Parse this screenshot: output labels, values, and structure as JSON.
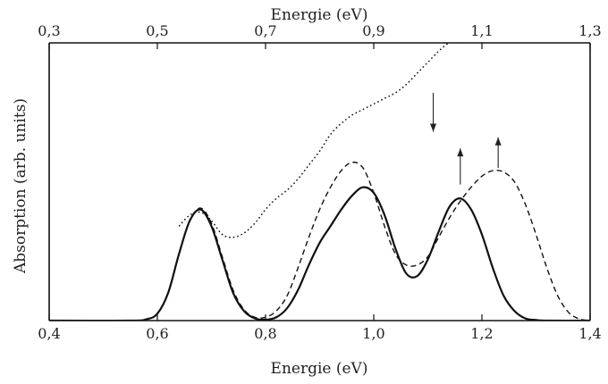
{
  "chart_data": {
    "type": "line",
    "title": "",
    "xlabel": "Energie (eV)",
    "xlabel_top": "Energie (eV)",
    "ylabel": "Absorption (arb. units)",
    "xlim": [
      0.4,
      1.4
    ],
    "xlim_top": [
      0.3,
      1.3
    ],
    "ylim": [
      0,
      1
    ],
    "xticks": [
      "0,4",
      "0,6",
      "0,8",
      "1,0",
      "1,2",
      "1,4"
    ],
    "xticks_top": [
      "0,3",
      "0,5",
      "0,7",
      "0,9",
      "1,1",
      "1,3"
    ],
    "grid": false,
    "legend": "none",
    "series": [
      {
        "style": "solid",
        "color": "#111111",
        "x": [
          0.4,
          0.55,
          0.58,
          0.6,
          0.62,
          0.64,
          0.66,
          0.68,
          0.7,
          0.72,
          0.74,
          0.76,
          0.78,
          0.8,
          0.82,
          0.84,
          0.86,
          0.88,
          0.9,
          0.92,
          0.94,
          0.96,
          0.98,
          1.0,
          1.02,
          1.04,
          1.06,
          1.08,
          1.1,
          1.12,
          1.14,
          1.16,
          1.18,
          1.2,
          1.22,
          1.24,
          1.26,
          1.28,
          1.3,
          1.32,
          1.4
        ],
        "y": [
          0.0,
          0.0,
          0.005,
          0.025,
          0.1,
          0.24,
          0.36,
          0.4,
          0.34,
          0.22,
          0.1,
          0.035,
          0.008,
          0.003,
          0.012,
          0.045,
          0.11,
          0.2,
          0.28,
          0.34,
          0.4,
          0.45,
          0.48,
          0.46,
          0.38,
          0.26,
          0.17,
          0.16,
          0.22,
          0.32,
          0.41,
          0.44,
          0.4,
          0.31,
          0.19,
          0.09,
          0.035,
          0.008,
          0.002,
          0.0,
          0.0
        ]
      },
      {
        "style": "dashed",
        "color": "#111111",
        "x": [
          0.4,
          0.55,
          0.58,
          0.6,
          0.62,
          0.64,
          0.66,
          0.68,
          0.7,
          0.72,
          0.74,
          0.76,
          0.78,
          0.8,
          0.82,
          0.84,
          0.86,
          0.88,
          0.9,
          0.92,
          0.94,
          0.96,
          0.98,
          1.0,
          1.02,
          1.04,
          1.06,
          1.08,
          1.1,
          1.12,
          1.14,
          1.16,
          1.18,
          1.2,
          1.22,
          1.24,
          1.26,
          1.28,
          1.3,
          1.32,
          1.34,
          1.36,
          1.38,
          1.4
        ],
        "y": [
          0.0,
          0.0,
          0.005,
          0.025,
          0.1,
          0.24,
          0.36,
          0.405,
          0.35,
          0.23,
          0.11,
          0.04,
          0.012,
          0.012,
          0.035,
          0.09,
          0.19,
          0.3,
          0.4,
          0.48,
          0.54,
          0.57,
          0.55,
          0.46,
          0.34,
          0.24,
          0.2,
          0.2,
          0.23,
          0.3,
          0.37,
          0.43,
          0.48,
          0.52,
          0.54,
          0.535,
          0.5,
          0.42,
          0.31,
          0.19,
          0.09,
          0.03,
          0.006,
          0.0
        ]
      },
      {
        "style": "dotted",
        "color": "#111111",
        "x": [
          0.64,
          0.66,
          0.68,
          0.7,
          0.72,
          0.74,
          0.76,
          0.78,
          0.8,
          0.82,
          0.84,
          0.86,
          0.88,
          0.9,
          0.92,
          0.94,
          0.96,
          0.98,
          1.0,
          1.02,
          1.04,
          1.06,
          1.08,
          1.1,
          1.12,
          1.14,
          1.16
        ],
        "y": [
          0.34,
          0.38,
          0.39,
          0.36,
          0.31,
          0.3,
          0.315,
          0.35,
          0.4,
          0.44,
          0.47,
          0.51,
          0.56,
          0.61,
          0.67,
          0.71,
          0.74,
          0.76,
          0.78,
          0.8,
          0.82,
          0.85,
          0.89,
          0.93,
          0.97,
          1.0,
          1.0
        ]
      }
    ],
    "annotations": [
      {
        "type": "arrow",
        "direction": "down",
        "x": 1.11,
        "y_from": 0.82,
        "y_to": 0.68
      },
      {
        "type": "arrow",
        "direction": "up",
        "x": 1.16,
        "y_from": 0.49,
        "y_to": 0.62
      },
      {
        "type": "arrow",
        "direction": "up",
        "x": 1.23,
        "y_from": 0.55,
        "y_to": 0.66
      }
    ]
  }
}
